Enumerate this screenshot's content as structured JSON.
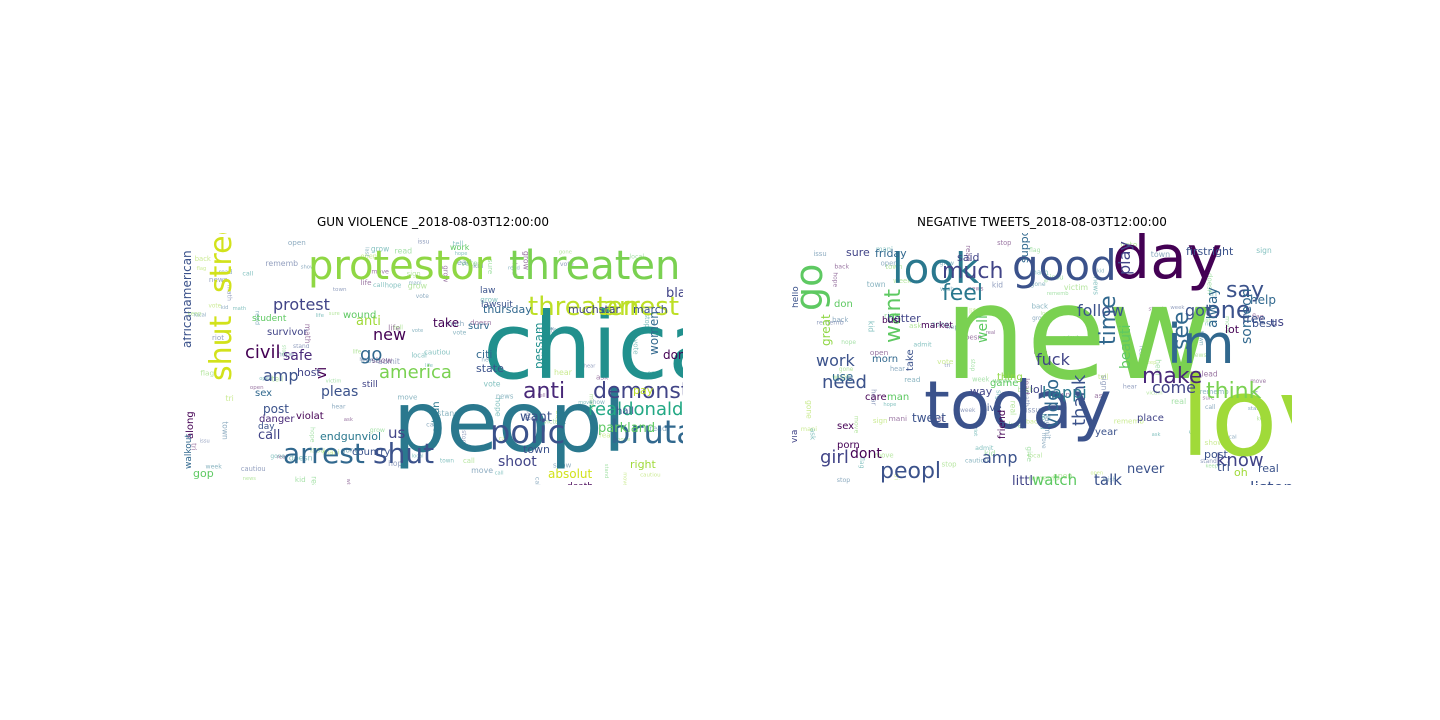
{
  "figure": {
    "panels": [
      {
        "title": "GUN VIOLENCE _2018-08-03T12:00:00"
      },
      {
        "title": "NEGATIVE TWEETS_2018-08-03T12:00:00"
      }
    ]
  },
  "chart_data": [
    {
      "type": "wordcloud",
      "title": "GUN VIOLENCE _2018-08-03T12:00:00",
      "palette": "viridis",
      "words": [
        {
          "text": "chicago",
          "weight": 1.0,
          "color": "#21908d"
        },
        {
          "text": "peopl",
          "weight": 0.88,
          "color": "#2a788e"
        },
        {
          "text": "protestor",
          "weight": 0.42,
          "color": "#8fd744"
        },
        {
          "text": "threaten",
          "weight": 0.42,
          "color": "#7ad151"
        },
        {
          "text": "shut",
          "weight": 0.34,
          "color": "#d2e21b"
        },
        {
          "text": "street",
          "weight": 0.34,
          "color": "#d2e21b"
        },
        {
          "text": "threaten",
          "weight": 0.28,
          "color": "#bddf26"
        },
        {
          "text": "arrest",
          "weight": 0.28,
          "color": "#bddf26"
        },
        {
          "text": "polic",
          "weight": 0.34,
          "color": "#3b528b"
        },
        {
          "text": "brutal",
          "weight": 0.34,
          "color": "#31688e"
        },
        {
          "text": "arrest",
          "weight": 0.3,
          "color": "#31688e"
        },
        {
          "text": "shut",
          "weight": 0.3,
          "color": "#3b528b"
        },
        {
          "text": "anti",
          "weight": 0.22,
          "color": "#482878"
        },
        {
          "text": "demonstr",
          "weight": 0.22,
          "color": "#414487"
        },
        {
          "text": "realdonaldtrump",
          "weight": 0.18,
          "color": "#22a884"
        },
        {
          "text": "america",
          "weight": 0.17,
          "color": "#7ad151"
        },
        {
          "text": "civil",
          "weight": 0.17,
          "color": "#440154"
        },
        {
          "text": "protest",
          "weight": 0.16,
          "color": "#414487"
        },
        {
          "text": "new",
          "weight": 0.16,
          "color": "#440154"
        },
        {
          "text": "go",
          "weight": 0.16,
          "color": "#31688e"
        },
        {
          "text": "amp",
          "weight": 0.15,
          "color": "#3b528b"
        },
        {
          "text": "us",
          "weight": 0.14,
          "color": "#414487"
        },
        {
          "text": "shoot",
          "weight": 0.14,
          "color": "#414487"
        },
        {
          "text": "safe",
          "weight": 0.13,
          "color": "#482878"
        },
        {
          "text": "anti",
          "weight": 0.12,
          "color": "#a0da39"
        },
        {
          "text": "vi",
          "weight": 0.12,
          "color": "#440154"
        },
        {
          "text": "pleas",
          "weight": 0.12,
          "color": "#3b528b"
        },
        {
          "text": "want",
          "weight": 0.11,
          "color": "#3b528b"
        },
        {
          "text": "parkland",
          "weight": 0.11,
          "color": "#5ec962"
        },
        {
          "text": "absolut",
          "weight": 0.11,
          "color": "#d2e21b"
        },
        {
          "text": "post",
          "weight": 0.1,
          "color": "#3b528b"
        },
        {
          "text": "call",
          "weight": 0.1,
          "color": "#414487"
        },
        {
          "text": "take",
          "weight": 0.1,
          "color": "#440154"
        },
        {
          "text": "black",
          "weight": 0.1,
          "color": "#414487"
        },
        {
          "text": "women",
          "weight": 0.1,
          "color": "#31688e"
        },
        {
          "text": "dont",
          "weight": 0.1,
          "color": "#440154"
        },
        {
          "text": "pessam",
          "weight": 0.1,
          "color": "#21908d"
        },
        {
          "text": "town",
          "weight": 0.09,
          "color": "#3b528b"
        },
        {
          "text": "pay",
          "weight": 0.09,
          "color": "#bddf26"
        },
        {
          "text": "right",
          "weight": 0.09,
          "color": "#a0da39"
        },
        {
          "text": "gop",
          "weight": 0.09,
          "color": "#5ec962"
        },
        {
          "text": "endgunviol",
          "weight": 0.09,
          "color": "#2a788e"
        },
        {
          "text": "africanamerican",
          "weight": 0.09,
          "color": "#3b528b"
        },
        {
          "text": "march",
          "weight": 0.09,
          "color": "#3b528b"
        },
        {
          "text": "muchstar",
          "weight": 0.09,
          "color": "#414487"
        },
        {
          "text": "thursday",
          "weight": 0.08,
          "color": "#31688e"
        },
        {
          "text": "host",
          "weight": 0.08,
          "color": "#414487"
        },
        {
          "text": "citi",
          "weight": 0.08,
          "color": "#31688e"
        },
        {
          "text": "state",
          "weight": 0.08,
          "color": "#3b528b"
        },
        {
          "text": "surv",
          "weight": 0.07,
          "color": "#31688e"
        },
        {
          "text": "survivor",
          "weight": 0.07,
          "color": "#414487"
        },
        {
          "text": "sex",
          "weight": 0.07,
          "color": "#31688e"
        },
        {
          "text": "danger",
          "weight": 0.07,
          "color": "#482878"
        },
        {
          "text": "country",
          "weight": 0.07,
          "color": "#3b528b"
        },
        {
          "text": "violat",
          "weight": 0.07,
          "color": "#440154"
        },
        {
          "text": "wound",
          "weight": 0.07,
          "color": "#5ec962"
        },
        {
          "text": "student",
          "weight": 0.07,
          "color": "#5ec962"
        },
        {
          "text": "law",
          "weight": 0.07,
          "color": "#3b528b"
        },
        {
          "text": "lawsuit",
          "weight": 0.06,
          "color": "#3b528b"
        },
        {
          "text": "hall",
          "weight": 0.07,
          "color": "#3b528b"
        },
        {
          "text": "still",
          "weight": 0.06,
          "color": "#414487"
        },
        {
          "text": "along",
          "weight": 0.07,
          "color": "#440154"
        },
        {
          "text": "walkout",
          "weight": 0.06,
          "color": "#31688e"
        },
        {
          "text": "death",
          "weight": 0.06,
          "color": "#440154"
        },
        {
          "text": "orlean",
          "weight": 0.07,
          "color": "#2a788e"
        },
        {
          "text": "day",
          "weight": 0.06,
          "color": "#3b528b"
        },
        {
          "text": "work",
          "weight": 0.05,
          "color": "#5ec962"
        }
      ]
    },
    {
      "type": "wordcloud",
      "title": "NEGATIVE TWEETS_2018-08-03T12:00:00",
      "palette": "viridis",
      "words": [
        {
          "text": "new",
          "weight": 1.0,
          "color": "#7ad151"
        },
        {
          "text": "love",
          "weight": 0.78,
          "color": "#a0da39"
        },
        {
          "text": "today",
          "weight": 0.62,
          "color": "#3b528b"
        },
        {
          "text": "day",
          "weight": 0.5,
          "color": "#440154"
        },
        {
          "text": "good",
          "weight": 0.42,
          "color": "#3b528b"
        },
        {
          "text": "look",
          "weight": 0.38,
          "color": "#2a788e"
        },
        {
          "text": "im",
          "weight": 0.4,
          "color": "#31688e"
        },
        {
          "text": "go",
          "weight": 0.34,
          "color": "#5ec962"
        },
        {
          "text": "much",
          "weight": 0.22,
          "color": "#414487"
        },
        {
          "text": "feel",
          "weight": 0.22,
          "color": "#2a788e"
        },
        {
          "text": "say",
          "weight": 0.22,
          "color": "#3b528b"
        },
        {
          "text": "one",
          "weight": 0.24,
          "color": "#3b528b"
        },
        {
          "text": "see",
          "weight": 0.22,
          "color": "#31688e"
        },
        {
          "text": "time",
          "weight": 0.2,
          "color": "#31688e"
        },
        {
          "text": "think",
          "weight": 0.2,
          "color": "#7ad151"
        },
        {
          "text": "make",
          "weight": 0.2,
          "color": "#482878"
        },
        {
          "text": "want",
          "weight": 0.2,
          "color": "#5ec962"
        },
        {
          "text": "follow",
          "weight": 0.16,
          "color": "#3b528b"
        },
        {
          "text": "play",
          "weight": 0.16,
          "color": "#414487"
        },
        {
          "text": "got",
          "weight": 0.16,
          "color": "#3b528b"
        },
        {
          "text": "peopl",
          "weight": 0.2,
          "color": "#3b528b"
        },
        {
          "text": "girl",
          "weight": 0.16,
          "color": "#414487"
        },
        {
          "text": "need",
          "weight": 0.17,
          "color": "#3b528b"
        },
        {
          "text": "work",
          "weight": 0.16,
          "color": "#3b528b"
        },
        {
          "text": "video",
          "weight": 0.17,
          "color": "#31688e"
        },
        {
          "text": "thank",
          "weight": 0.16,
          "color": "#3b528b"
        },
        {
          "text": "come",
          "weight": 0.15,
          "color": "#414487"
        },
        {
          "text": "know",
          "weight": 0.16,
          "color": "#414487"
        },
        {
          "text": "listen",
          "weight": 0.14,
          "color": "#3b528b"
        },
        {
          "text": "happi",
          "weight": 0.14,
          "color": "#2a788e"
        },
        {
          "text": "watch",
          "weight": 0.13,
          "color": "#5ec962"
        },
        {
          "text": "talk",
          "weight": 0.13,
          "color": "#3b528b"
        },
        {
          "text": "fuck",
          "weight": 0.13,
          "color": "#414487"
        },
        {
          "text": "amp",
          "weight": 0.13,
          "color": "#3b528b"
        },
        {
          "text": "beauti",
          "weight": 0.12,
          "color": "#5ec962"
        },
        {
          "text": "someon",
          "weight": 0.12,
          "color": "#31688e"
        },
        {
          "text": "alway",
          "weight": 0.12,
          "color": "#31688e"
        },
        {
          "text": "well",
          "weight": 0.12,
          "color": "#5ec962"
        },
        {
          "text": "great",
          "weight": 0.12,
          "color": "#8fd744"
        },
        {
          "text": "dont",
          "weight": 0.12,
          "color": "#440154"
        },
        {
          "text": "never",
          "weight": 0.11,
          "color": "#3b528b"
        },
        {
          "text": "littl",
          "weight": 0.11,
          "color": "#414487"
        },
        {
          "text": "help",
          "weight": 0.1,
          "color": "#31688e"
        },
        {
          "text": "free",
          "weight": 0.1,
          "color": "#3b528b"
        },
        {
          "text": "us",
          "weight": 0.1,
          "color": "#414487"
        },
        {
          "text": "said",
          "weight": 0.09,
          "color": "#414487"
        },
        {
          "text": "better",
          "weight": 0.09,
          "color": "#414487"
        },
        {
          "text": "friday",
          "weight": 0.08,
          "color": "#31688e"
        },
        {
          "text": "sure",
          "weight": 0.08,
          "color": "#414487"
        },
        {
          "text": "firstright",
          "weight": 0.08,
          "color": "#3b528b"
        },
        {
          "text": "support",
          "weight": 0.08,
          "color": "#31688e"
        },
        {
          "text": "way",
          "weight": 0.09,
          "color": "#414487"
        },
        {
          "text": "take",
          "weight": 0.09,
          "color": "#3b528b"
        },
        {
          "text": "use",
          "weight": 0.08,
          "color": "#31688e"
        },
        {
          "text": "tri",
          "weight": 0.08,
          "color": "#3b528b"
        },
        {
          "text": "lol",
          "weight": 0.08,
          "color": "#414487"
        },
        {
          "text": "post",
          "weight": 0.08,
          "color": "#3b528b"
        },
        {
          "text": "real",
          "weight": 0.08,
          "color": "#3b528b"
        },
        {
          "text": "lot",
          "weight": 0.07,
          "color": "#440154"
        },
        {
          "text": "best",
          "weight": 0.07,
          "color": "#3b528b"
        },
        {
          "text": "oh",
          "weight": 0.07,
          "color": "#a0da39"
        },
        {
          "text": "tweet",
          "weight": 0.08,
          "color": "#3b528b"
        },
        {
          "text": "wait",
          "weight": 0.07,
          "color": "#414487"
        },
        {
          "text": "still",
          "weight": 0.06,
          "color": "#3b528b"
        },
        {
          "text": "guy",
          "weight": 0.07,
          "color": "#3b528b"
        },
        {
          "text": "home",
          "weight": 0.06,
          "color": "#3b528b"
        },
        {
          "text": "reallI",
          "weight": 0.07,
          "color": "#31688e"
        },
        {
          "text": "porn",
          "weight": 0.07,
          "color": "#440154"
        },
        {
          "text": "sex",
          "weight": 0.07,
          "color": "#440154"
        },
        {
          "text": "via",
          "weight": 0.07,
          "color": "#414487"
        },
        {
          "text": "even",
          "weight": 0.07,
          "color": "#414487"
        },
        {
          "text": "don",
          "weight": 0.08,
          "color": "#5ec962"
        },
        {
          "text": "morn",
          "weight": 0.07,
          "color": "#31688e"
        },
        {
          "text": "care",
          "weight": 0.07,
          "color": "#440154"
        },
        {
          "text": "man",
          "weight": 0.07,
          "color": "#5ec962"
        },
        {
          "text": "live",
          "weight": 0.07,
          "color": "#3b528b"
        },
        {
          "text": "game",
          "weight": 0.07,
          "color": "#5ec962"
        },
        {
          "text": "friend",
          "weight": 0.07,
          "color": "#440154"
        },
        {
          "text": "year",
          "weight": 0.06,
          "color": "#3b528b"
        },
        {
          "text": "place",
          "weight": 0.07,
          "color": "#414487"
        },
        {
          "text": "thing",
          "weight": 0.07,
          "color": "#8fd744"
        },
        {
          "text": "hello",
          "weight": 0.06,
          "color": "#3b528b"
        },
        {
          "text": "busi",
          "weight": 0.06,
          "color": "#440154"
        },
        {
          "text": "market",
          "weight": 0.06,
          "color": "#440154"
        }
      ]
    }
  ]
}
